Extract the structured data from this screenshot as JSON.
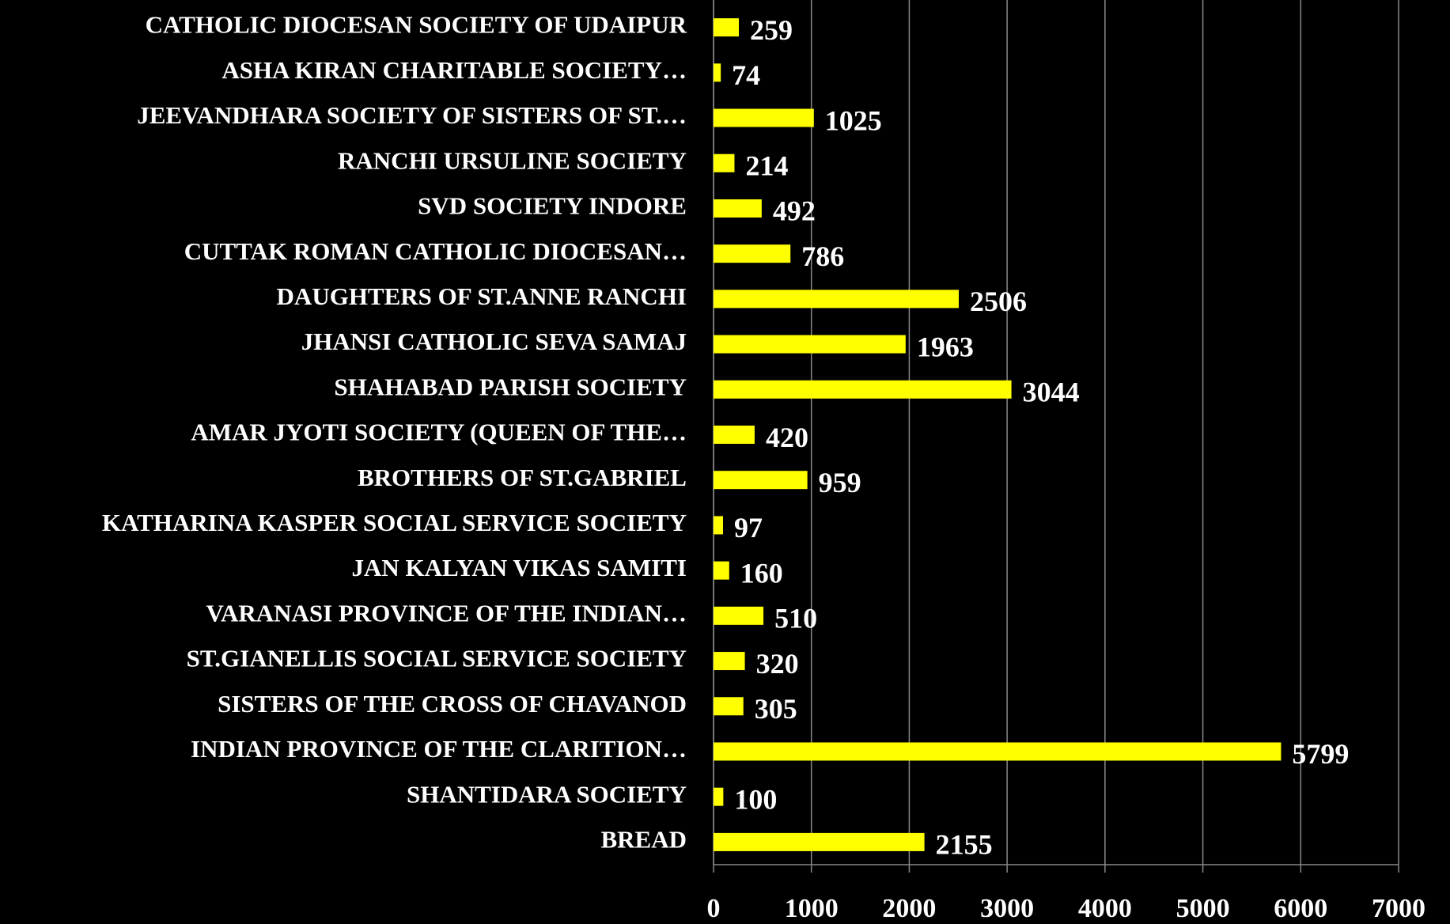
{
  "chart_data": {
    "type": "barh",
    "categories": [
      "CATHOLIC DIOCESAN SOCIETY OF UDAIPUR",
      "ASHA KIRAN CHARITABLE SOCIETY…",
      "JEEVANDHARA SOCIETY OF SISTERS OF ST.…",
      "RANCHI URSULINE SOCIETY",
      "SVD SOCIETY  INDORE",
      "CUTTAK ROMAN CATHOLIC DIOCESAN…",
      "DAUGHTERS OF ST.ANNE RANCHI",
      "JHANSI CATHOLIC SEVA SAMAJ",
      "SHAHABAD PARISH SOCIETY",
      "AMAR JYOTI SOCIETY (QUEEN OF THE…",
      "BROTHERS OF ST.GABRIEL",
      "KATHARINA KASPER SOCIAL SERVICE SOCIETY",
      "JAN KALYAN VIKAS SAMITI",
      "VARANASI PROVINCE OF THE INDIAN…",
      "ST.GIANELLIS SOCIAL SERVICE SOCIETY",
      "SISTERS OF THE CROSS OF CHAVANOD",
      "INDIAN PROVINCE OF THE CLARITION…",
      "SHANTIDARA SOCIETY",
      "BREAD"
    ],
    "values": [
      259,
      74,
      1025,
      214,
      492,
      786,
      2506,
      1963,
      3044,
      420,
      959,
      97,
      160,
      510,
      320,
      305,
      5799,
      100,
      2155
    ],
    "color": "#ffff00",
    "xlim": [
      0,
      7000
    ],
    "xticks": [
      0,
      1000,
      2000,
      3000,
      4000,
      5000,
      6000,
      7000
    ],
    "grid": true
  }
}
